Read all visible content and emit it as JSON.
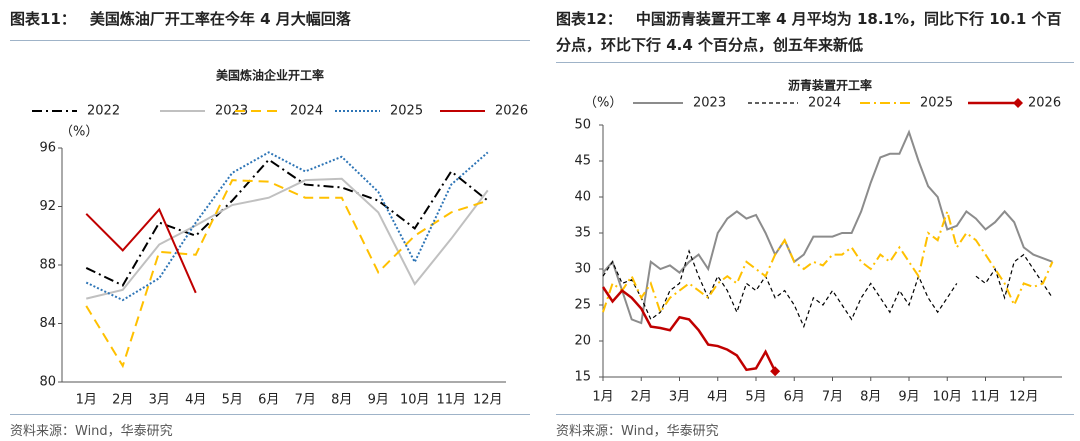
{
  "chart_data": [
    {
      "type": "line",
      "figure_label": "图表11：",
      "caption": "美国炼油厂开工率在今年 4 月大幅回落",
      "title": "美国炼油企业开工率",
      "y_unit": "（%）",
      "source": "资料来源：Wind，华泰研究",
      "categories": [
        "1月",
        "2月",
        "3月",
        "4月",
        "5月",
        "6月",
        "7月",
        "8月",
        "9月",
        "10月",
        "11月",
        "12月"
      ],
      "ylim": [
        80,
        96
      ],
      "yticks": [
        80,
        84,
        88,
        92,
        96
      ],
      "grid": false,
      "series": [
        {
          "name": "2022",
          "color": "#000000",
          "dash": "10,4,2,4",
          "values": [
            87.8,
            86.6,
            90.9,
            90.0,
            92.4,
            95.2,
            93.5,
            93.3,
            92.4,
            90.5,
            94.4,
            92.4
          ]
        },
        {
          "name": "2023",
          "color": "#c0c0c0",
          "dash": "",
          "values": [
            85.7,
            86.3,
            89.4,
            90.7,
            92.1,
            92.6,
            93.8,
            93.9,
            91.6,
            86.7,
            89.8,
            93.1
          ]
        },
        {
          "name": "2024",
          "color": "#ffc000",
          "dash": "10,6",
          "values": [
            85.2,
            81.1,
            88.9,
            88.7,
            93.8,
            93.7,
            92.6,
            92.6,
            87.5,
            90.0,
            91.6,
            92.4
          ]
        },
        {
          "name": "2025",
          "color": "#2e75b6",
          "dash": "2,2",
          "values": [
            86.8,
            85.6,
            87.1,
            90.9,
            94.3,
            95.7,
            94.4,
            95.4,
            93.0,
            88.2,
            93.5,
            95.7
          ]
        },
        {
          "name": "2026",
          "color": "#c00000",
          "dash": "",
          "values": [
            91.5,
            89.0,
            91.8,
            86.1,
            null,
            null,
            null,
            null,
            null,
            null,
            null,
            null
          ]
        }
      ]
    },
    {
      "type": "line",
      "figure_label": "图表12：",
      "caption": "中国沥青装置开工率 4 月平均为 18.1%，同比下行 10.1 个百分点，环比下行 4.4 个百分点，创五年来新低",
      "title": "沥青装置开工率",
      "y_unit": "（%）",
      "source": "资料来源：Wind，华泰研究",
      "x": [
        1,
        1.25,
        1.5,
        1.75,
        2,
        2.25,
        2.5,
        2.75,
        3,
        3.25,
        3.5,
        3.75,
        4,
        4.25,
        4.5,
        4.75,
        5,
        5.25,
        5.5,
        5.75,
        6,
        6.25,
        6.5,
        6.75,
        7,
        7.25,
        7.5,
        7.75,
        8,
        8.25,
        8.5,
        8.75,
        9,
        9.25,
        9.5,
        9.75,
        10,
        10.25,
        10.5,
        10.75,
        11,
        11.25,
        11.5,
        11.75,
        12,
        12.25,
        12.5,
        12.75
      ],
      "xlim": [
        1,
        13
      ],
      "xticks": [
        {
          "value": 1,
          "label": "1月"
        },
        {
          "value": 2,
          "label": "2月"
        },
        {
          "value": 3,
          "label": "3月"
        },
        {
          "value": 4,
          "label": "4月"
        },
        {
          "value": 5,
          "label": "5月"
        },
        {
          "value": 6,
          "label": "6月"
        },
        {
          "value": 7,
          "label": "7月"
        },
        {
          "value": 8,
          "label": "8月"
        },
        {
          "value": 9,
          "label": "9月"
        },
        {
          "value": 10,
          "label": "10月"
        },
        {
          "value": 11,
          "label": "11月"
        },
        {
          "value": 12,
          "label": "12月"
        }
      ],
      "ylim": [
        15,
        50
      ],
      "yticks": [
        15,
        20,
        25,
        30,
        35,
        40,
        45,
        50
      ],
      "grid": false,
      "series": [
        {
          "name": "2023",
          "color": "#8c8c8c",
          "dash": "",
          "width": 2,
          "values": [
            29.5,
            31,
            27,
            23,
            22.5,
            31,
            30,
            30.5,
            29.5,
            31,
            32,
            30,
            35,
            37,
            38,
            37,
            37.5,
            35,
            32,
            34,
            31,
            32,
            34.5,
            34.5,
            34.5,
            35,
            35,
            38,
            42,
            45.5,
            46,
            46,
            49,
            45,
            41.5,
            40,
            35.5,
            36,
            38,
            37,
            35.5,
            36.5,
            38,
            36.5,
            33,
            32,
            31.5,
            31
          ]
        },
        {
          "name": "2024",
          "color": "#000000",
          "dash": "4,3",
          "width": 1.2,
          "values": [
            29,
            31,
            28,
            28.5,
            26,
            23,
            24,
            27,
            28,
            32.5,
            29,
            26,
            29,
            27,
            24,
            28,
            27,
            29,
            26,
            27,
            25,
            22,
            26,
            25,
            27,
            25,
            23,
            26,
            28,
            26,
            24,
            27,
            25,
            29,
            26,
            24,
            26,
            28,
            null,
            29,
            28,
            30,
            26,
            31,
            32,
            30,
            28,
            26
          ]
        },
        {
          "name": "2025",
          "color": "#ffc000",
          "dash": "10,4,2,4",
          "width": 2,
          "values": [
            24,
            28,
            27,
            29,
            26,
            28,
            24,
            26,
            27,
            28,
            27,
            26,
            28,
            29,
            28,
            31,
            30,
            29,
            32,
            34,
            31,
            30,
            31,
            30.5,
            32,
            32,
            33,
            31,
            30,
            32,
            31,
            33,
            31,
            29,
            35,
            34,
            38,
            33,
            35,
            34,
            32,
            30,
            28,
            25,
            28,
            27.5,
            28,
            31
          ]
        },
        {
          "name": "2026",
          "color": "#c00000",
          "dash": "",
          "width": 2.5,
          "marker": "diamond",
          "values": [
            27.5,
            25.5,
            27,
            26,
            24.5,
            22,
            21.8,
            21.5,
            23.3,
            23,
            21.5,
            19.5,
            19.3,
            18.8,
            18,
            16,
            16.2,
            18.5,
            15.8,
            null,
            null,
            null,
            null,
            null,
            null,
            null,
            null,
            null,
            null,
            null,
            null,
            null,
            null,
            null,
            null,
            null,
            null,
            null,
            null,
            null,
            null,
            null,
            null,
            null,
            null,
            null,
            null,
            null
          ]
        }
      ]
    }
  ]
}
